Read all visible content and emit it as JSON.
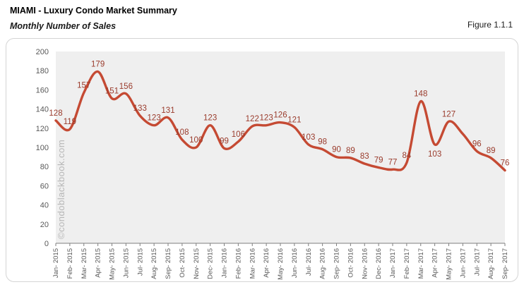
{
  "page": {
    "title": "MIAMI - Luxury Condo Market Summary",
    "subtitle": "Monthly Number of Sales",
    "figure_label": "Figure 1.1.1",
    "watermark": "©condoblackbook.com"
  },
  "chart_data": {
    "type": "line",
    "title": "MIAMI - Luxury Condo Market Summary",
    "subtitle": "Monthly Number of Sales",
    "x": [
      "Jan- 2015",
      "Feb- 2015",
      "Mar- 2015",
      "Apr- 2015",
      "May- 2015",
      "Jun- 2015",
      "Jul- 2015",
      "Aug- 2015",
      "Sep- 2015",
      "Oct- 2015",
      "Nov- 2015",
      "Dec- 2015",
      "Jan- 2016",
      "Feb- 2016",
      "Mar- 2016",
      "Apr- 2016",
      "May- 2016",
      "Jun- 2016",
      "Jul- 2016",
      "Aug- 2016",
      "Sep- 2016",
      "Oct- 2016",
      "Nov- 2016",
      "Dec- 2016",
      "Jan- 2017",
      "Feb- 2017",
      "Mar- 2017",
      "Apr- 2017",
      "May- 2017",
      "Jun- 2017",
      "Jul- 2017",
      "Aug- 2017",
      "Sep- 2017"
    ],
    "series": [
      {
        "name": "Monthly Number of Sales",
        "values": [
          128,
          119,
          157,
          179,
          151,
          156,
          133,
          123,
          131,
          108,
          100,
          123,
          99,
          106,
          122,
          123,
          126,
          121,
          103,
          98,
          90,
          89,
          83,
          79,
          77,
          84,
          148,
          103,
          127,
          114,
          96,
          89,
          76
        ],
        "point_labels": [
          "128",
          "119",
          "157",
          "179",
          "151",
          "156",
          "133",
          "123",
          "131",
          "108",
          "100",
          "123",
          "99",
          "106",
          "122",
          "123",
          "126",
          "121",
          "103",
          "98",
          "90",
          "89",
          "83",
          "79",
          "77",
          "84",
          "148",
          "103",
          "127",
          "",
          "96",
          "89",
          "76"
        ]
      }
    ],
    "xlabel": "",
    "ylabel": "",
    "ylim": [
      0,
      200
    ],
    "ytick_step": 20,
    "yticks": [
      "0",
      "20",
      "40",
      "60",
      "80",
      "100",
      "120",
      "140",
      "160",
      "180",
      "200"
    ],
    "grid": false,
    "legend": "none",
    "smoothed": true,
    "colors": {
      "line": "#c54a33",
      "data_label": "#9a3b2c",
      "axis_text": "#595959",
      "axis_line": "#7f7f7f",
      "plot_bg": "#efefef",
      "watermark": "#b7b7b7"
    }
  }
}
